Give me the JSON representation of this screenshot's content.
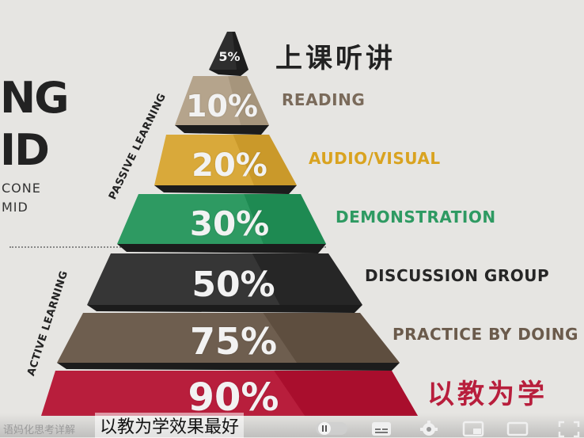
{
  "pyramid": {
    "tiers": [
      {
        "pct": "5%",
        "label": "上课听讲",
        "color": "#2e2e2e",
        "label_color": "#222222"
      },
      {
        "pct": "10%",
        "label": "READING",
        "color": "#b5a48c",
        "label_color": "#7a6a5a"
      },
      {
        "pct": "20%",
        "label": "AUDIO/VISUAL",
        "color": "#d9a93a",
        "label_color": "#d9a320"
      },
      {
        "pct": "30%",
        "label": "DEMONSTRATION",
        "color": "#2e9a62",
        "label_color": "#2e9a62"
      },
      {
        "pct": "50%",
        "label": "DISCUSSION GROUP",
        "color": "#363636",
        "label_color": "#262626"
      },
      {
        "pct": "75%",
        "label": "PRACTICE BY DOING",
        "color": "#6e5e4f",
        "label_color": "#6b5b4c"
      },
      {
        "pct": "90%",
        "label": "以教为学",
        "color": "#b81e3c",
        "label_color": "#b81e3c"
      }
    ],
    "passive_label": "PASSIVE LEARNING",
    "active_label": "ACTIVE LEARNING"
  },
  "left_text": {
    "line1": "NG",
    "line2": "ID",
    "line3": "CONE",
    "line4": "MID"
  },
  "player": {
    "watermark": "语妈化思考详解",
    "subtitle": "以教为学效果最好",
    "icons": [
      "pause-toggle-icon",
      "subtitles-icon",
      "gear-icon",
      "miniplayer-icon",
      "theater-icon",
      "fullscreen-icon"
    ]
  }
}
